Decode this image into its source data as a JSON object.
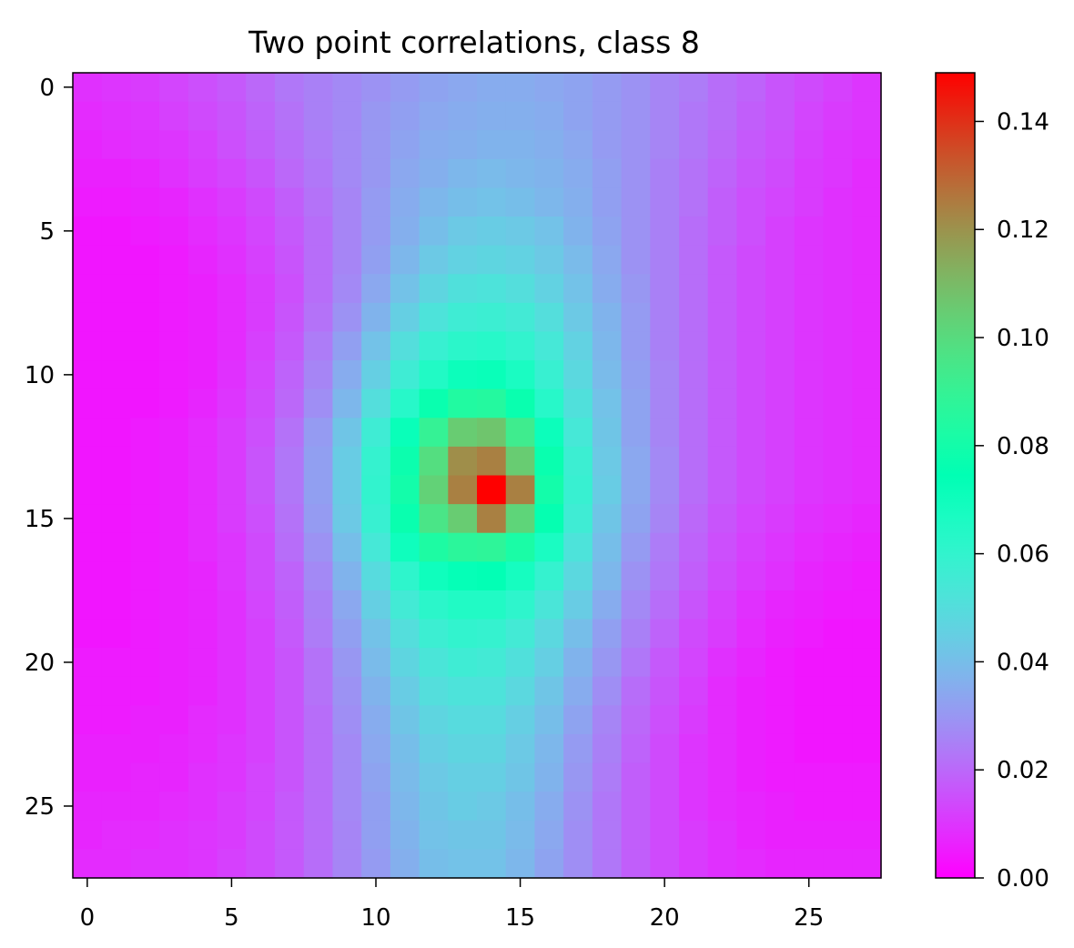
{
  "chart_data": {
    "type": "heatmap",
    "title": "Two point correlations, class 8",
    "xlabel": "",
    "ylabel": "",
    "rows": 28,
    "cols": 28,
    "xlim": [
      -0.5,
      27.5
    ],
    "ylim": [
      27.5,
      -0.5
    ],
    "x_ticks": [
      0,
      5,
      10,
      15,
      20,
      25
    ],
    "y_ticks": [
      0,
      5,
      10,
      15,
      20,
      25
    ],
    "x_tick_labels": [
      "0",
      "5",
      "10",
      "15",
      "20",
      "25"
    ],
    "y_tick_labels": [
      "0",
      "5",
      "10",
      "15",
      "20",
      "25"
    ],
    "colormap": "rainbow",
    "grid": false,
    "peak": {
      "row": 14,
      "col": 14,
      "value": 0.149
    },
    "colorbar": {
      "min": 0.0,
      "max": 0.149,
      "ticks": [
        0.0,
        0.02,
        0.04,
        0.06,
        0.08,
        0.1,
        0.12,
        0.14
      ],
      "tick_labels": [
        "0.00",
        "0.02",
        "0.04",
        "0.06",
        "0.08",
        "0.10",
        "0.12",
        "0.14"
      ]
    },
    "values": [
      [
        0.009,
        0.01,
        0.011,
        0.013,
        0.015,
        0.017,
        0.02,
        0.023,
        0.025,
        0.027,
        0.029,
        0.031,
        0.033,
        0.034,
        0.035,
        0.035,
        0.034,
        0.033,
        0.031,
        0.029,
        0.026,
        0.024,
        0.021,
        0.019,
        0.016,
        0.014,
        0.012,
        0.01
      ],
      [
        0.008,
        0.009,
        0.01,
        0.012,
        0.014,
        0.016,
        0.019,
        0.022,
        0.025,
        0.027,
        0.03,
        0.032,
        0.034,
        0.035,
        0.036,
        0.036,
        0.035,
        0.033,
        0.031,
        0.029,
        0.026,
        0.023,
        0.021,
        0.018,
        0.016,
        0.013,
        0.011,
        0.01
      ],
      [
        0.007,
        0.008,
        0.009,
        0.01,
        0.012,
        0.015,
        0.018,
        0.021,
        0.024,
        0.027,
        0.03,
        0.033,
        0.035,
        0.036,
        0.037,
        0.037,
        0.036,
        0.034,
        0.031,
        0.029,
        0.026,
        0.023,
        0.02,
        0.017,
        0.015,
        0.012,
        0.01,
        0.009
      ],
      [
        0.006,
        0.006,
        0.007,
        0.009,
        0.011,
        0.013,
        0.016,
        0.02,
        0.023,
        0.027,
        0.03,
        0.034,
        0.036,
        0.038,
        0.039,
        0.038,
        0.037,
        0.035,
        0.032,
        0.029,
        0.025,
        0.022,
        0.019,
        0.016,
        0.014,
        0.011,
        0.01,
        0.008
      ],
      [
        0.005,
        0.005,
        0.006,
        0.007,
        0.009,
        0.011,
        0.014,
        0.018,
        0.022,
        0.026,
        0.031,
        0.035,
        0.038,
        0.04,
        0.041,
        0.04,
        0.038,
        0.036,
        0.032,
        0.029,
        0.025,
        0.022,
        0.018,
        0.015,
        0.013,
        0.011,
        0.009,
        0.008
      ],
      [
        0.004,
        0.004,
        0.005,
        0.006,
        0.008,
        0.01,
        0.013,
        0.017,
        0.021,
        0.026,
        0.031,
        0.036,
        0.04,
        0.043,
        0.044,
        0.043,
        0.041,
        0.037,
        0.033,
        0.029,
        0.025,
        0.021,
        0.018,
        0.015,
        0.012,
        0.01,
        0.009,
        0.008
      ],
      [
        0.004,
        0.004,
        0.004,
        0.005,
        0.007,
        0.009,
        0.012,
        0.016,
        0.021,
        0.026,
        0.032,
        0.038,
        0.043,
        0.046,
        0.047,
        0.046,
        0.043,
        0.039,
        0.034,
        0.029,
        0.025,
        0.021,
        0.017,
        0.014,
        0.012,
        0.01,
        0.009,
        0.008
      ],
      [
        0.004,
        0.004,
        0.004,
        0.005,
        0.006,
        0.008,
        0.011,
        0.015,
        0.021,
        0.027,
        0.034,
        0.041,
        0.047,
        0.051,
        0.052,
        0.05,
        0.046,
        0.041,
        0.035,
        0.03,
        0.025,
        0.021,
        0.017,
        0.014,
        0.012,
        0.01,
        0.009,
        0.008
      ],
      [
        0.004,
        0.004,
        0.004,
        0.005,
        0.006,
        0.008,
        0.011,
        0.016,
        0.022,
        0.029,
        0.037,
        0.045,
        0.052,
        0.056,
        0.057,
        0.055,
        0.05,
        0.043,
        0.037,
        0.031,
        0.025,
        0.021,
        0.017,
        0.014,
        0.012,
        0.01,
        0.009,
        0.008
      ],
      [
        0.004,
        0.004,
        0.004,
        0.005,
        0.006,
        0.008,
        0.012,
        0.017,
        0.024,
        0.032,
        0.041,
        0.05,
        0.058,
        0.062,
        0.063,
        0.06,
        0.054,
        0.046,
        0.038,
        0.031,
        0.025,
        0.021,
        0.017,
        0.014,
        0.012,
        0.01,
        0.009,
        0.008
      ],
      [
        0.004,
        0.004,
        0.004,
        0.005,
        0.006,
        0.009,
        0.013,
        0.019,
        0.026,
        0.035,
        0.045,
        0.056,
        0.065,
        0.071,
        0.072,
        0.067,
        0.058,
        0.048,
        0.039,
        0.032,
        0.026,
        0.021,
        0.017,
        0.014,
        0.012,
        0.01,
        0.009,
        0.008
      ],
      [
        0.004,
        0.004,
        0.004,
        0.005,
        0.007,
        0.01,
        0.014,
        0.02,
        0.028,
        0.038,
        0.05,
        0.063,
        0.077,
        0.084,
        0.085,
        0.077,
        0.063,
        0.051,
        0.041,
        0.033,
        0.026,
        0.021,
        0.017,
        0.014,
        0.012,
        0.01,
        0.009,
        0.008
      ],
      [
        0.004,
        0.004,
        0.005,
        0.006,
        0.008,
        0.011,
        0.015,
        0.022,
        0.031,
        0.042,
        0.056,
        0.072,
        0.09,
        0.105,
        0.107,
        0.093,
        0.071,
        0.054,
        0.042,
        0.033,
        0.026,
        0.021,
        0.017,
        0.014,
        0.012,
        0.01,
        0.009,
        0.008
      ],
      [
        0.004,
        0.004,
        0.005,
        0.006,
        0.008,
        0.011,
        0.016,
        0.023,
        0.032,
        0.044,
        0.059,
        0.078,
        0.099,
        0.121,
        0.124,
        0.105,
        0.077,
        0.057,
        0.043,
        0.034,
        0.027,
        0.021,
        0.017,
        0.014,
        0.012,
        0.01,
        0.009,
        0.008
      ],
      [
        0.004,
        0.004,
        0.005,
        0.006,
        0.008,
        0.011,
        0.016,
        0.023,
        0.032,
        0.044,
        0.06,
        0.08,
        0.103,
        0.124,
        0.149,
        0.124,
        0.08,
        0.058,
        0.044,
        0.034,
        0.027,
        0.021,
        0.017,
        0.014,
        0.012,
        0.01,
        0.009,
        0.008
      ],
      [
        0.004,
        0.004,
        0.005,
        0.006,
        0.008,
        0.011,
        0.015,
        0.022,
        0.031,
        0.043,
        0.058,
        0.077,
        0.096,
        0.105,
        0.124,
        0.102,
        0.076,
        0.056,
        0.042,
        0.033,
        0.026,
        0.02,
        0.016,
        0.013,
        0.011,
        0.009,
        0.008,
        0.007
      ],
      [
        0.004,
        0.004,
        0.005,
        0.006,
        0.008,
        0.01,
        0.014,
        0.021,
        0.029,
        0.04,
        0.054,
        0.07,
        0.083,
        0.087,
        0.088,
        0.082,
        0.067,
        0.052,
        0.04,
        0.031,
        0.024,
        0.019,
        0.015,
        0.012,
        0.01,
        0.008,
        0.007,
        0.006
      ],
      [
        0.004,
        0.004,
        0.005,
        0.006,
        0.007,
        0.01,
        0.014,
        0.019,
        0.027,
        0.037,
        0.049,
        0.061,
        0.07,
        0.073,
        0.074,
        0.068,
        0.059,
        0.048,
        0.038,
        0.029,
        0.023,
        0.018,
        0.014,
        0.011,
        0.009,
        0.007,
        0.006,
        0.005
      ],
      [
        0.004,
        0.004,
        0.005,
        0.006,
        0.007,
        0.009,
        0.013,
        0.018,
        0.025,
        0.034,
        0.045,
        0.055,
        0.062,
        0.065,
        0.065,
        0.061,
        0.053,
        0.044,
        0.035,
        0.027,
        0.021,
        0.016,
        0.012,
        0.009,
        0.007,
        0.006,
        0.005,
        0.005
      ],
      [
        0.004,
        0.004,
        0.005,
        0.006,
        0.007,
        0.009,
        0.012,
        0.017,
        0.024,
        0.032,
        0.041,
        0.05,
        0.057,
        0.06,
        0.059,
        0.055,
        0.048,
        0.04,
        0.032,
        0.025,
        0.019,
        0.014,
        0.011,
        0.008,
        0.006,
        0.005,
        0.004,
        0.004
      ],
      [
        0.005,
        0.005,
        0.005,
        0.006,
        0.007,
        0.009,
        0.012,
        0.016,
        0.022,
        0.03,
        0.039,
        0.047,
        0.053,
        0.056,
        0.055,
        0.051,
        0.045,
        0.037,
        0.03,
        0.023,
        0.017,
        0.013,
        0.009,
        0.007,
        0.005,
        0.004,
        0.004,
        0.004
      ],
      [
        0.005,
        0.005,
        0.005,
        0.006,
        0.007,
        0.009,
        0.012,
        0.016,
        0.022,
        0.029,
        0.037,
        0.044,
        0.05,
        0.052,
        0.052,
        0.048,
        0.042,
        0.035,
        0.028,
        0.021,
        0.016,
        0.012,
        0.008,
        0.006,
        0.005,
        0.004,
        0.004,
        0.004
      ],
      [
        0.005,
        0.005,
        0.006,
        0.006,
        0.008,
        0.009,
        0.012,
        0.016,
        0.021,
        0.028,
        0.035,
        0.042,
        0.047,
        0.049,
        0.049,
        0.045,
        0.04,
        0.033,
        0.026,
        0.02,
        0.015,
        0.011,
        0.008,
        0.006,
        0.005,
        0.004,
        0.004,
        0.004
      ],
      [
        0.006,
        0.006,
        0.006,
        0.007,
        0.008,
        0.01,
        0.012,
        0.016,
        0.021,
        0.027,
        0.034,
        0.04,
        0.045,
        0.047,
        0.047,
        0.043,
        0.038,
        0.031,
        0.025,
        0.019,
        0.014,
        0.01,
        0.008,
        0.006,
        0.005,
        0.004,
        0.004,
        0.004
      ],
      [
        0.006,
        0.006,
        0.007,
        0.007,
        0.009,
        0.01,
        0.013,
        0.016,
        0.021,
        0.027,
        0.033,
        0.039,
        0.043,
        0.045,
        0.045,
        0.042,
        0.037,
        0.03,
        0.024,
        0.018,
        0.014,
        0.01,
        0.008,
        0.006,
        0.005,
        0.005,
        0.005,
        0.005
      ],
      [
        0.007,
        0.007,
        0.007,
        0.008,
        0.009,
        0.011,
        0.013,
        0.017,
        0.021,
        0.027,
        0.032,
        0.038,
        0.042,
        0.044,
        0.043,
        0.04,
        0.035,
        0.029,
        0.023,
        0.018,
        0.014,
        0.01,
        0.008,
        0.007,
        0.006,
        0.005,
        0.005,
        0.005
      ],
      [
        0.007,
        0.008,
        0.008,
        0.009,
        0.01,
        0.011,
        0.014,
        0.017,
        0.021,
        0.026,
        0.032,
        0.037,
        0.041,
        0.042,
        0.042,
        0.039,
        0.034,
        0.028,
        0.023,
        0.018,
        0.014,
        0.011,
        0.009,
        0.007,
        0.006,
        0.006,
        0.006,
        0.006
      ],
      [
        0.008,
        0.008,
        0.009,
        0.009,
        0.01,
        0.012,
        0.014,
        0.017,
        0.021,
        0.026,
        0.031,
        0.036,
        0.04,
        0.041,
        0.041,
        0.038,
        0.033,
        0.028,
        0.023,
        0.018,
        0.014,
        0.011,
        0.009,
        0.008,
        0.007,
        0.007,
        0.007,
        0.007
      ]
    ]
  }
}
